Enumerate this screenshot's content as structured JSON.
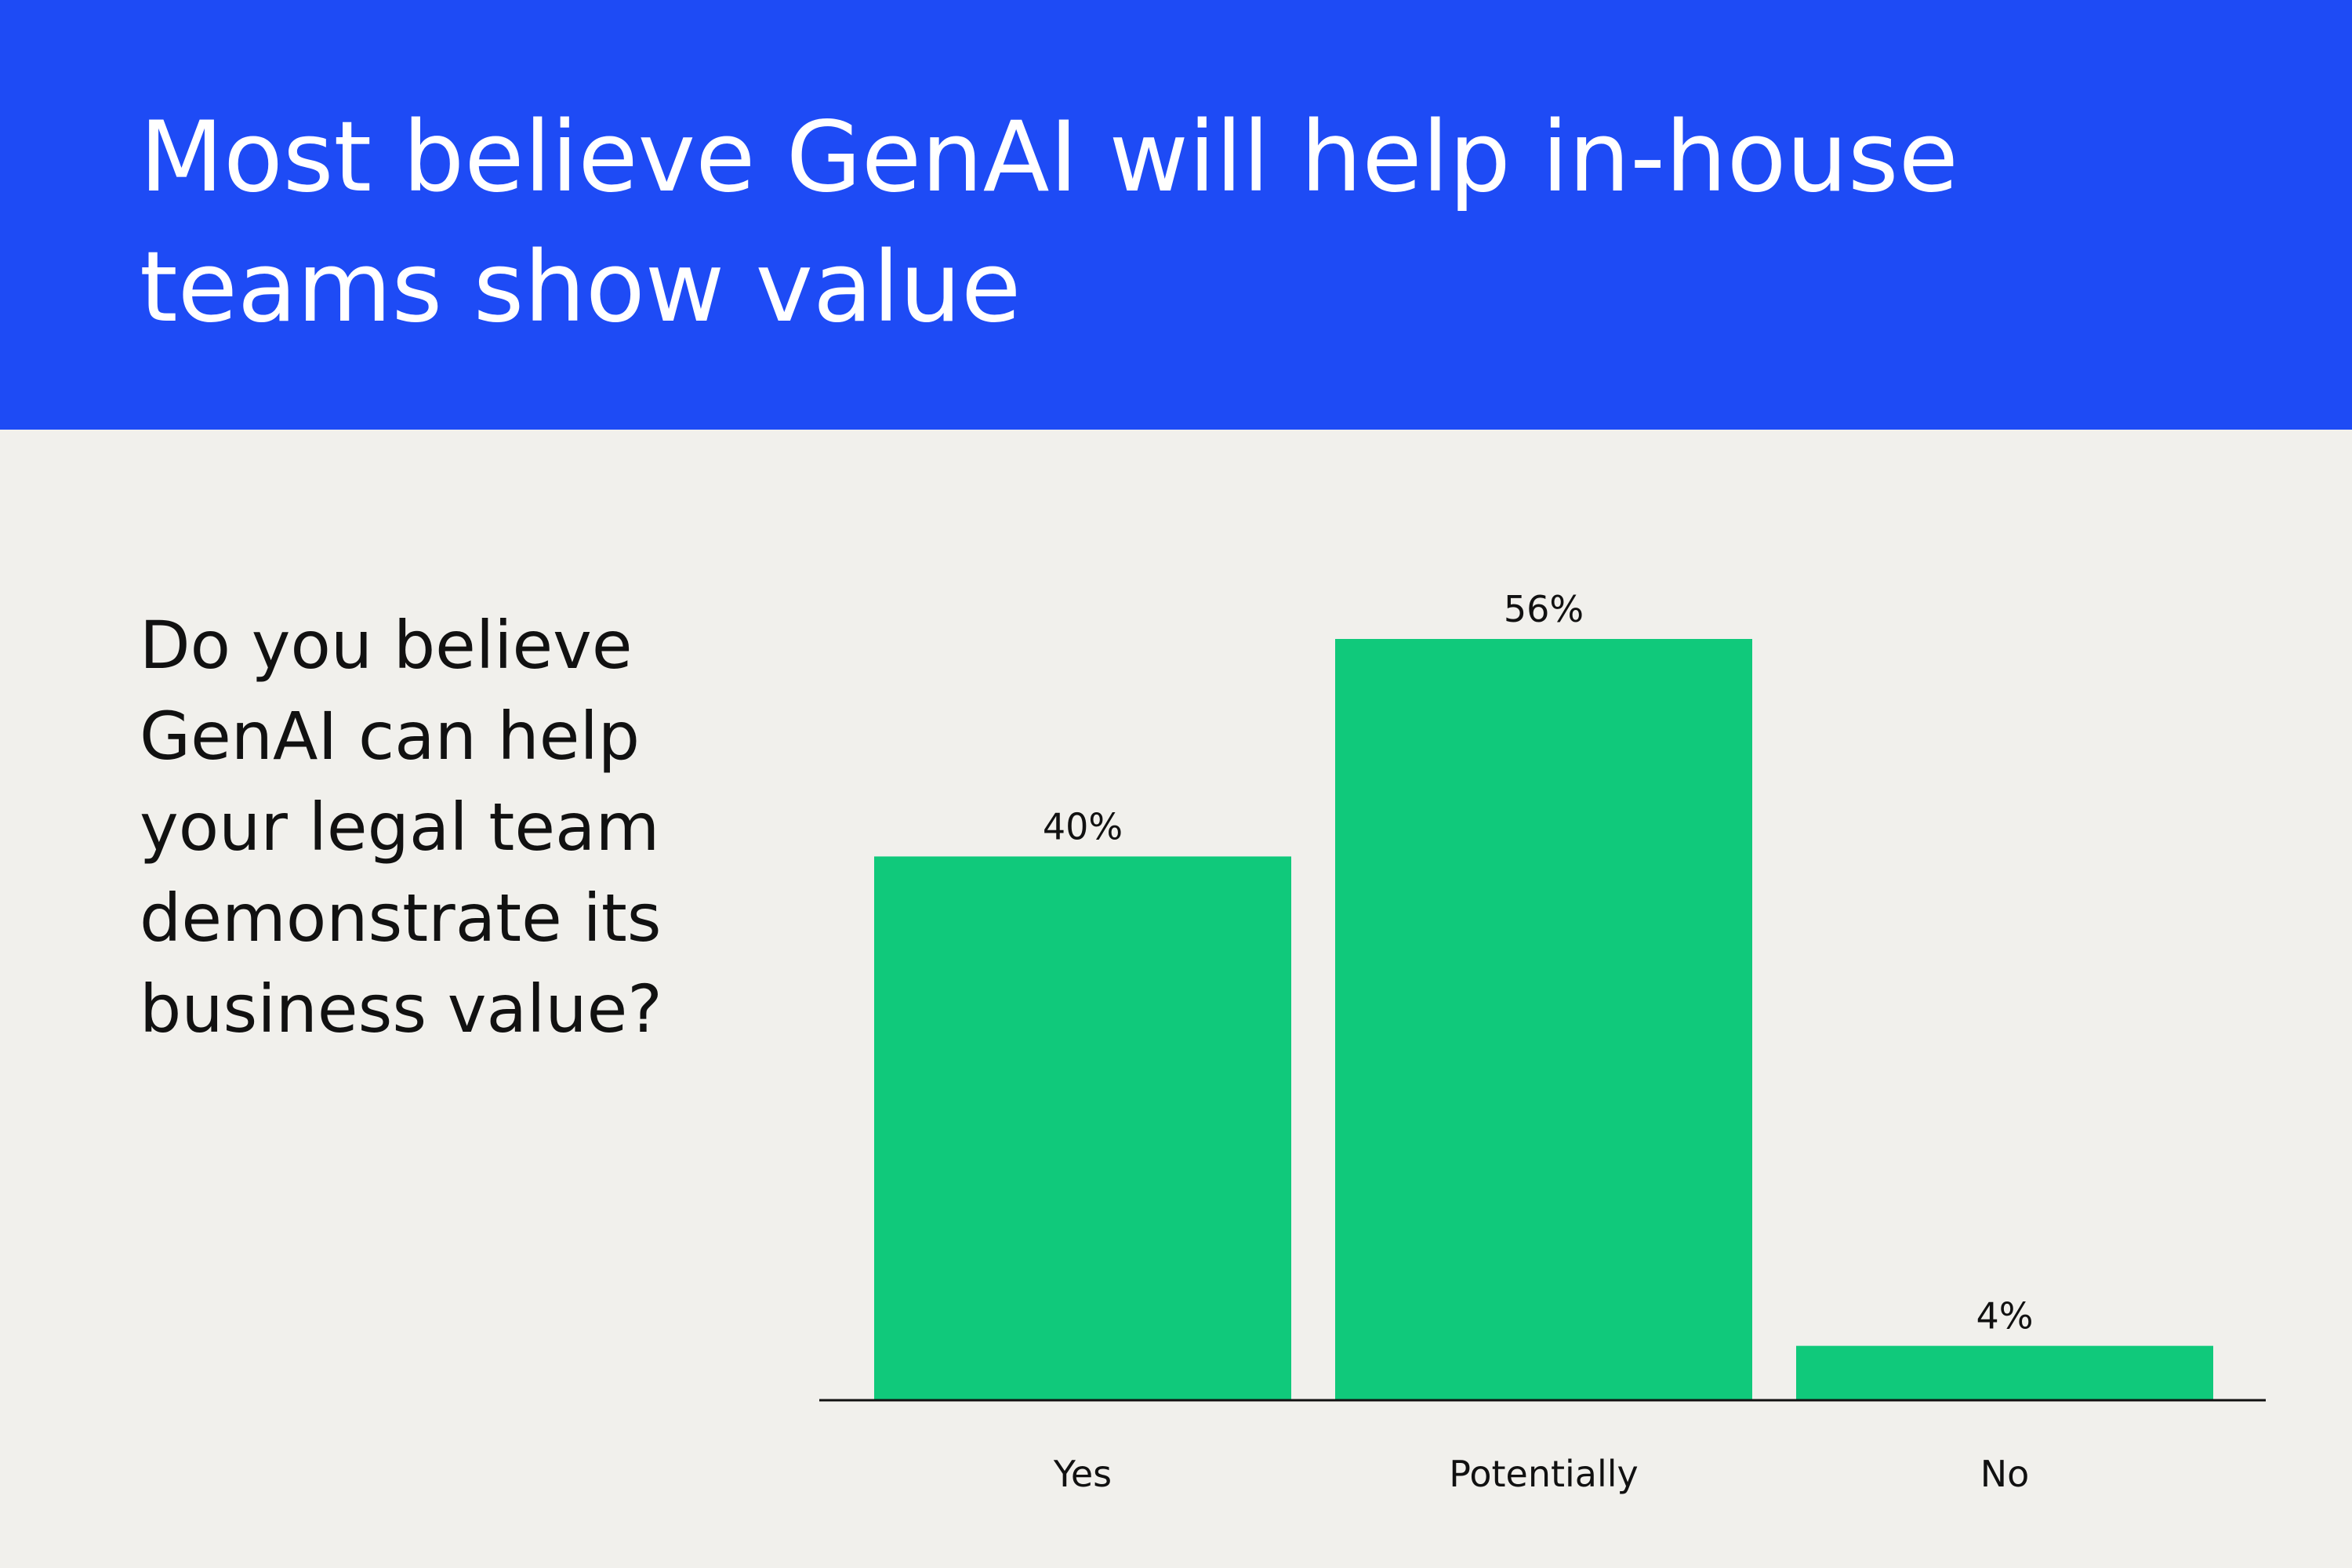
{
  "header": {
    "title_line1": "Most believe GenAI will help in-house",
    "title_line2": "teams show value"
  },
  "question": {
    "line1": "Do you believe",
    "line2": "GenAI can help",
    "line3": "your legal team",
    "line4": "demonstrate its",
    "line5": "business value?"
  },
  "colors": {
    "header_background": "#1e4bf5",
    "page_background": "#f1f0ec",
    "bar": "#10c97b",
    "text": "#111111"
  },
  "chart_data": {
    "type": "bar",
    "categories": [
      "Yes",
      "Potentially",
      "No"
    ],
    "values": [
      40,
      56,
      4
    ],
    "value_labels": [
      "40%",
      "56%",
      "4%"
    ],
    "unit": "%",
    "ylim": [
      0,
      56
    ],
    "grid": false,
    "legend": "none"
  }
}
